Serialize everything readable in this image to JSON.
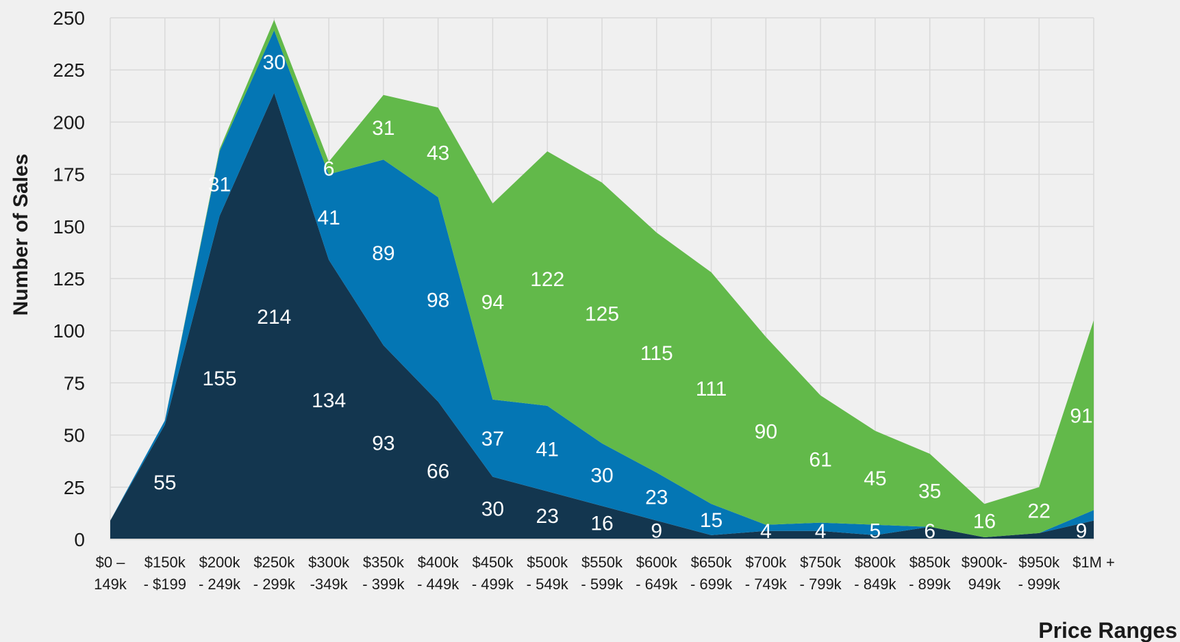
{
  "chart_data": {
    "type": "area",
    "stacked": true,
    "title": "",
    "xlabel": "Price Ranges",
    "ylabel": "Number of Sales",
    "ylim": [
      0,
      250
    ],
    "yticks": [
      0,
      25,
      50,
      75,
      100,
      125,
      150,
      175,
      200,
      225,
      250
    ],
    "grid": true,
    "legend": "none",
    "categories": [
      [
        "$0 –",
        "149k"
      ],
      [
        "$150k",
        "- $199"
      ],
      [
        "$200k",
        "- 249k"
      ],
      [
        "$250k",
        "- 299k"
      ],
      [
        "$300k",
        "-349k"
      ],
      [
        "$350k",
        "- 399k"
      ],
      [
        "$400k",
        "- 449k"
      ],
      [
        "$450k",
        "- 499k"
      ],
      [
        "$500k",
        "- 549k"
      ],
      [
        "$550k",
        "- 599k"
      ],
      [
        "$600k",
        "- 649k"
      ],
      [
        "$650k",
        "- 699k"
      ],
      [
        "$700k",
        "- 749k"
      ],
      [
        "$750k",
        "- 799k"
      ],
      [
        "$800k",
        "- 849k"
      ],
      [
        "$850k",
        "- 899k"
      ],
      [
        "$900k-",
        "949k"
      ],
      [
        "$950k",
        "- 999k"
      ],
      [
        "$1M +",
        ""
      ]
    ],
    "series": [
      {
        "color": "#13364f",
        "values": [
          9,
          55,
          155,
          214,
          134,
          93,
          66,
          30,
          23,
          16,
          9,
          2,
          4,
          4,
          2,
          6,
          1,
          3,
          9
        ],
        "labels": [
          "",
          "55",
          "155",
          "214",
          "134",
          "93",
          "66",
          "30",
          "23",
          "16",
          "9",
          "",
          "4",
          "4",
          "",
          "6",
          "",
          "",
          "9"
        ]
      },
      {
        "color": "#0476b4",
        "values": [
          0,
          2,
          31,
          30,
          41,
          89,
          98,
          37,
          41,
          30,
          23,
          15,
          3,
          4,
          5,
          0,
          0,
          0,
          5
        ],
        "labels": [
          "",
          "",
          "31",
          "30",
          "41",
          "89",
          "98",
          "37",
          "41",
          "30",
          "23",
          "15",
          "",
          "",
          "5",
          "",
          "",
          "",
          ""
        ]
      },
      {
        "color": "#62b94a",
        "values": [
          0,
          0,
          1,
          5,
          6,
          31,
          43,
          94,
          122,
          125,
          115,
          111,
          90,
          61,
          45,
          35,
          16,
          22,
          91
        ],
        "labels": [
          "",
          "",
          "",
          "",
          "6",
          "31",
          "43",
          "94",
          "122",
          "125",
          "115",
          "111",
          "90",
          "61",
          "45",
          "35",
          "16",
          "22",
          "91"
        ]
      }
    ]
  }
}
